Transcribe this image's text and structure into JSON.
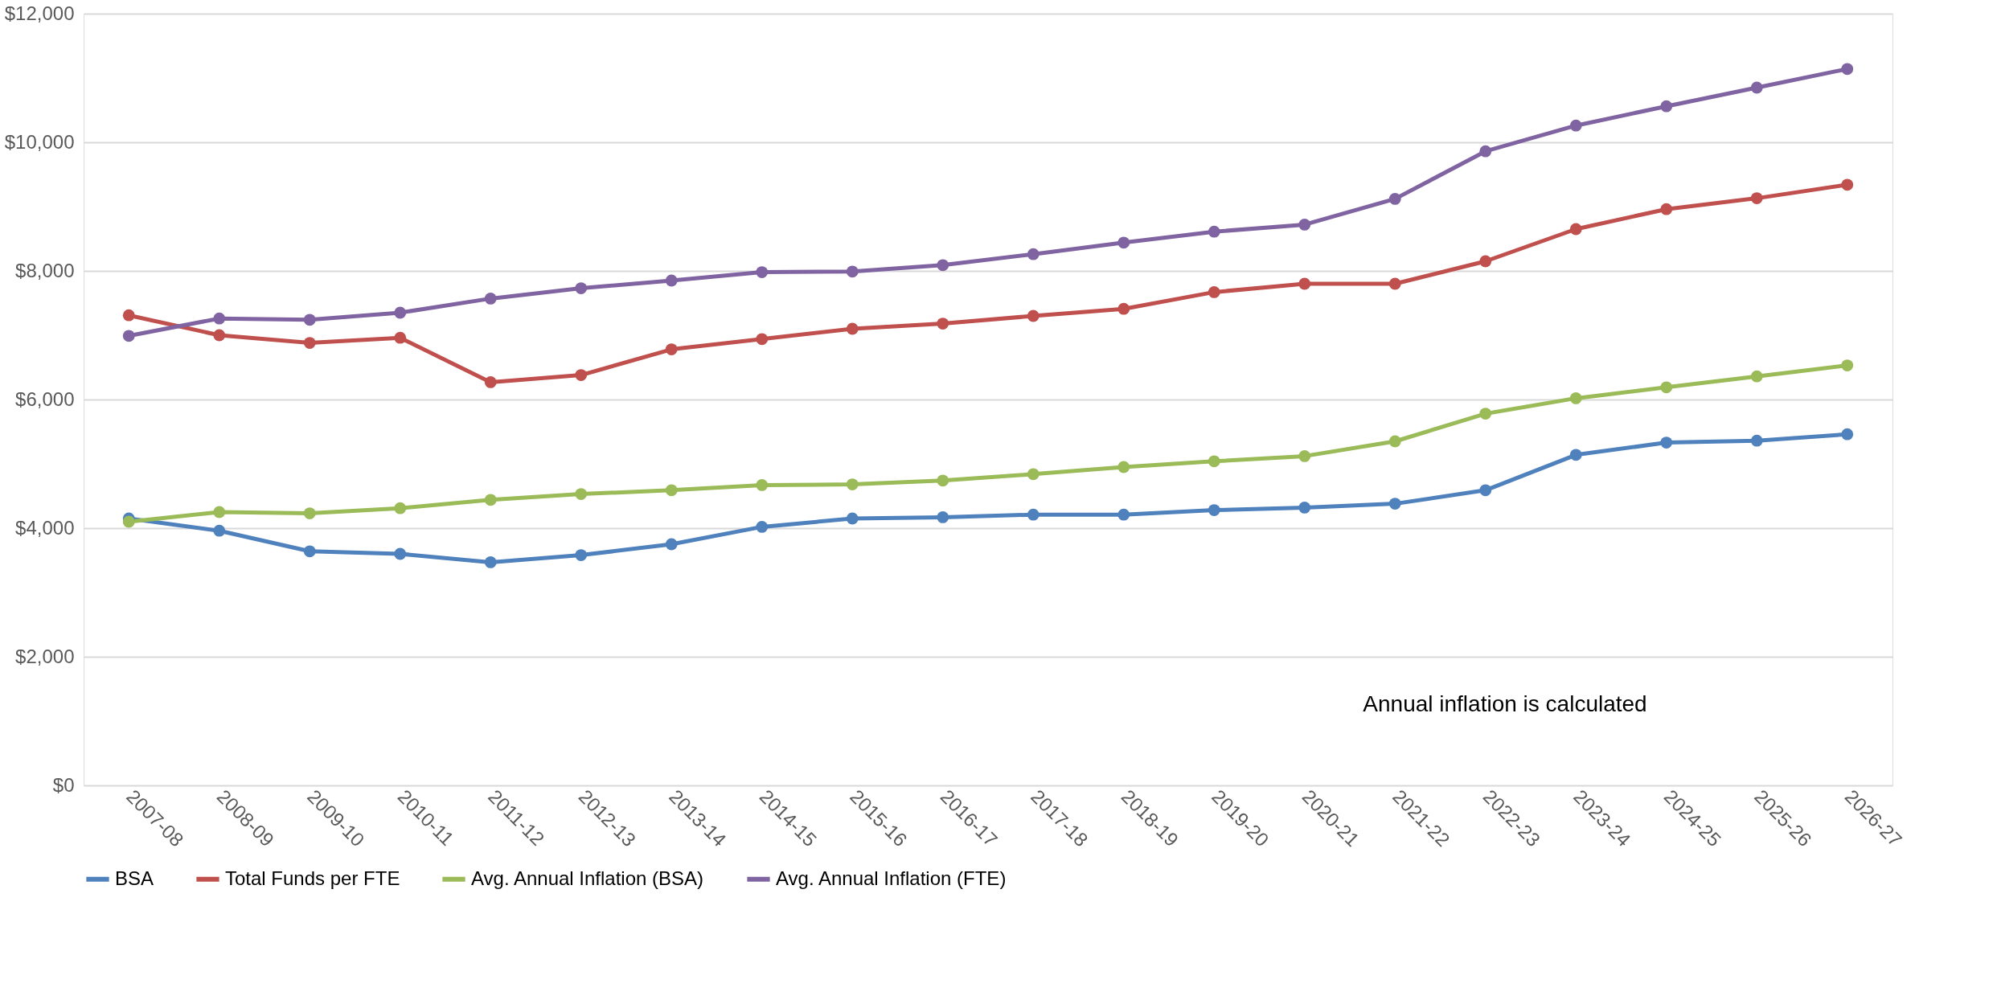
{
  "chart_data": {
    "type": "line",
    "categories": [
      "2007-08",
      "2008-09",
      "2009-10",
      "2010-11",
      "2011-12",
      "2012-13",
      "2013-14",
      "2014-15",
      "2015-16",
      "2016-17",
      "2017-18",
      "2018-19",
      "2019-20",
      "2020-21",
      "2021-22",
      "2022-23",
      "2023-24",
      "2024-25",
      "2025-26",
      "2026-27"
    ],
    "series": [
      {
        "name": "BSA",
        "color": "#4f81bd",
        "values": [
          4150,
          3960,
          3640,
          3600,
          3470,
          3580,
          3750,
          4020,
          4150,
          4170,
          4210,
          4210,
          4280,
          4320,
          4380,
          4590,
          5140,
          5330,
          5360,
          5460
        ]
      },
      {
        "name": "Total Funds per FTE",
        "color": "#c0504d",
        "values": [
          7310,
          7000,
          6880,
          6960,
          6270,
          6380,
          6780,
          6940,
          7100,
          7180,
          7300,
          7410,
          7670,
          7800,
          7800,
          8150,
          8650,
          8960,
          9130,
          9340
        ]
      },
      {
        "name": "Avg. Annual Inflation (BSA)",
        "color": "#9bbb59",
        "values": [
          4100,
          4250,
          4230,
          4310,
          4440,
          4530,
          4590,
          4670,
          4680,
          4740,
          4840,
          4950,
          5040,
          5120,
          5350,
          5780,
          6020,
          6190,
          6360,
          6530
        ]
      },
      {
        "name": "Avg. Annual Inflation (FTE)",
        "color": "#8064a2",
        "values": [
          6990,
          7260,
          7240,
          7350,
          7570,
          7730,
          7850,
          7980,
          7990,
          8090,
          8260,
          8440,
          8610,
          8720,
          9120,
          9860,
          10260,
          10560,
          10850,
          11140
        ]
      }
    ],
    "ylim": [
      0,
      12000
    ],
    "yticks": [
      {
        "value": 0,
        "label": "$0"
      },
      {
        "value": 2000,
        "label": "$2,000"
      },
      {
        "value": 4000,
        "label": "$4,000"
      },
      {
        "value": 6000,
        "label": "$6,000"
      },
      {
        "value": 8000,
        "label": "$8,000"
      },
      {
        "value": 10000,
        "label": "$10,000"
      },
      {
        "value": 12000,
        "label": "$12,000"
      }
    ],
    "annotations": [
      "Annual inflation is calculated"
    ],
    "grid": "y",
    "legend": "bottom",
    "marker": "circle",
    "line_style": "solid"
  }
}
